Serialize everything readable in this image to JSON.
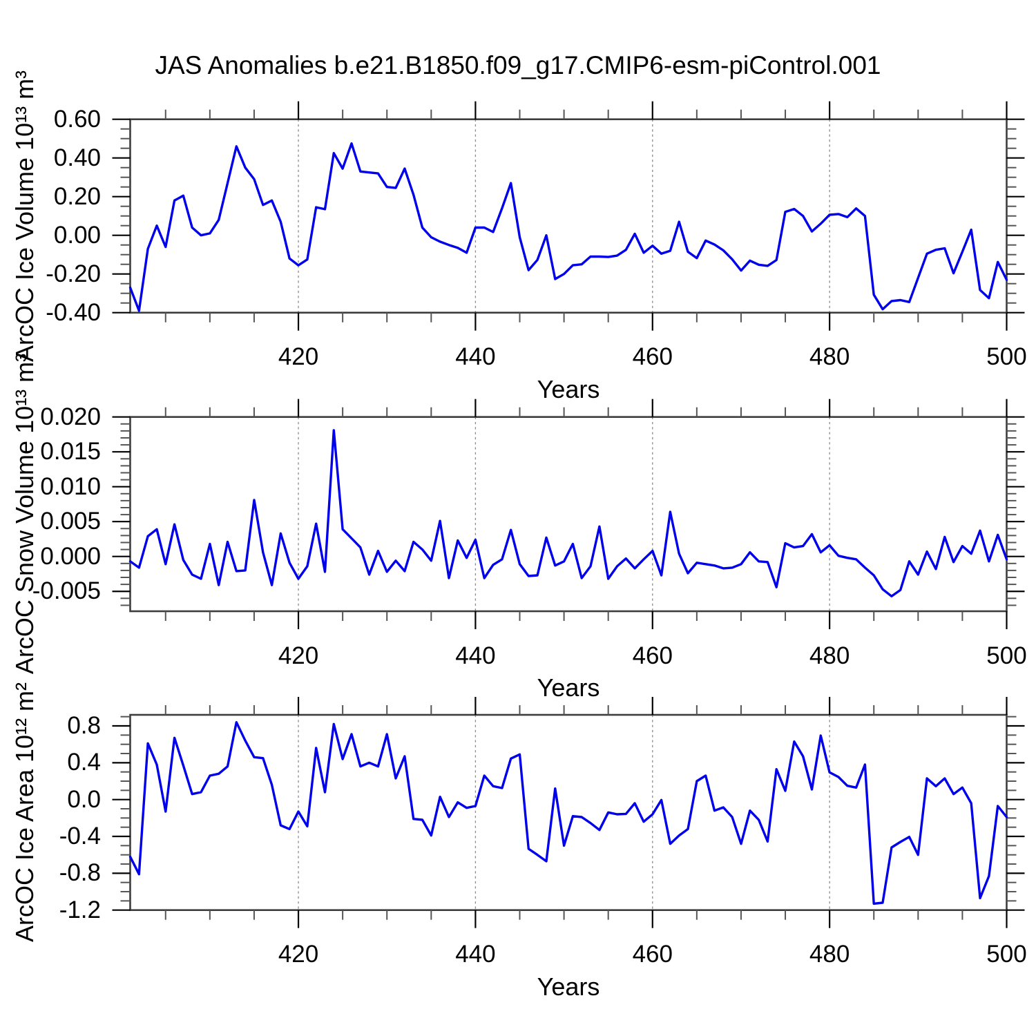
{
  "title": "JAS Anomalies b.e21.B1850.f09_g17.CMIP6-esm-piControl.001",
  "colors": {
    "line": "#0000EB",
    "frame": "#3d3d3d",
    "major_tick": "#000000",
    "minor_tick": "#555555",
    "gridline": "#8a8a8a",
    "text": "#000000",
    "background": "#ffffff"
  },
  "chart_data": [
    {
      "type": "line",
      "series_name": "ArcOC Ice Volume anomaly",
      "ylabel": "ArcOC Ice Volume 10¹³ m³",
      "xlabel": "Years",
      "x_start": 401,
      "xlim": [
        401,
        500
      ],
      "ylim": [
        -0.4,
        0.6
      ],
      "ytick_values": [
        0.6,
        0.4,
        0.2,
        0.0,
        -0.2,
        -0.4
      ],
      "ytick_labels": [
        "0.60",
        "0.40",
        "0.20",
        "0.00",
        "-0.20",
        "-0.40"
      ],
      "y_minor_step": 0.05,
      "xtick_values": [
        420,
        440,
        460,
        480,
        500
      ],
      "xtick_labels": [
        "420",
        "440",
        "460",
        "480",
        "500"
      ],
      "x_minor_step": 5,
      "gridline_x": [
        420,
        440,
        460,
        480
      ],
      "grid": "vertical-dashed",
      "legend": "none",
      "values": [
        -0.27,
        -0.39,
        -0.07,
        0.05,
        -0.06,
        0.18,
        0.205,
        0.04,
        0.0,
        0.01,
        0.08,
        0.27,
        0.46,
        0.35,
        0.29,
        0.157,
        0.18,
        0.07,
        -0.12,
        -0.155,
        -0.125,
        0.145,
        0.135,
        0.425,
        0.345,
        0.475,
        0.33,
        0.325,
        0.32,
        0.25,
        0.245,
        0.345,
        0.21,
        0.04,
        -0.01,
        -0.033,
        -0.05,
        -0.065,
        -0.09,
        0.04,
        0.04,
        0.017,
        0.14,
        0.27,
        -0.01,
        -0.18,
        -0.127,
        0.0,
        -0.226,
        -0.2,
        -0.155,
        -0.15,
        -0.11,
        -0.11,
        -0.112,
        -0.105,
        -0.075,
        0.008,
        -0.09,
        -0.054,
        -0.095,
        -0.08,
        0.07,
        -0.085,
        -0.118,
        -0.027,
        -0.048,
        -0.078,
        -0.124,
        -0.182,
        -0.131,
        -0.152,
        -0.158,
        -0.128,
        0.121,
        0.136,
        0.1,
        0.02,
        0.06,
        0.106,
        0.11,
        0.094,
        0.139,
        0.1,
        -0.307,
        -0.382,
        -0.34,
        -0.335,
        -0.345,
        -0.22,
        -0.095,
        -0.075,
        -0.067,
        -0.196,
        -0.085,
        0.029,
        -0.283,
        -0.325,
        -0.138,
        -0.23
      ]
    },
    {
      "type": "line",
      "series_name": "ArcOC Snow Volume anomaly",
      "ylabel": "ArcOC Snow Volume 10¹³ m³",
      "xlabel": "Years",
      "x_start": 401,
      "xlim": [
        401,
        500
      ],
      "ylim": [
        -0.00785,
        0.02
      ],
      "ytick_values": [
        0.02,
        0.015,
        0.01,
        0.005,
        0.0,
        -0.005
      ],
      "ytick_labels": [
        "0.020",
        "0.015",
        "0.010",
        "0.005",
        "0.000",
        "-0.005"
      ],
      "y_minor_step": 0.001,
      "xtick_values": [
        420,
        440,
        460,
        480,
        500
      ],
      "xtick_labels": [
        "420",
        "440",
        "460",
        "480",
        "500"
      ],
      "x_minor_step": 5,
      "gridline_x": [
        420,
        440,
        460,
        480
      ],
      "grid": "vertical-dashed",
      "legend": "none",
      "values": [
        -0.0007,
        -0.0016,
        0.0029,
        0.0039,
        -0.0011,
        0.0046,
        -0.0005,
        -0.0026,
        -0.0032,
        0.0018,
        -0.0041,
        0.0021,
        -0.0021,
        -0.002,
        0.0081,
        0.0006,
        -0.0041,
        0.0033,
        -0.0009,
        -0.0032,
        -0.0014,
        0.0047,
        -0.0022,
        0.0181,
        0.0039,
        0.0026,
        0.0013,
        -0.0026,
        0.0008,
        -0.0022,
        -0.0006,
        -0.0021,
        0.0021,
        0.001,
        -0.0006,
        0.0051,
        -0.0031,
        0.0023,
        -0.0002,
        0.0024,
        -0.0031,
        -0.0012,
        -0.0004,
        0.0038,
        -0.0011,
        -0.0028,
        -0.0027,
        0.0027,
        -0.0013,
        -0.0007,
        0.0018,
        -0.0031,
        -0.0014,
        0.0043,
        -0.0032,
        -0.0014,
        -0.0003,
        -0.0017,
        -0.0004,
        0.0008,
        -0.0027,
        0.0064,
        0.0004,
        -0.0024,
        -0.0009,
        -0.0011,
        -0.0013,
        -0.0017,
        -0.0016,
        -0.0011,
        0.0006,
        -0.0007,
        -0.0008,
        -0.0044,
        0.0019,
        0.0013,
        0.0015,
        0.0032,
        0.0006,
        0.0016,
        0.0001,
        -0.0002,
        -0.0004,
        -0.0016,
        -0.0027,
        -0.0047,
        -0.0057,
        -0.0048,
        -0.0007,
        -0.0026,
        0.0007,
        -0.0018,
        0.0028,
        -0.0008,
        0.0015,
        0.0004,
        0.0037,
        -0.0007,
        0.0031,
        -0.0004
      ]
    },
    {
      "type": "line",
      "series_name": "ArcOC Ice Area anomaly",
      "ylabel": "ArcOC Ice Area 10¹² m²",
      "xlabel": "Years",
      "x_start": 401,
      "xlim": [
        401,
        500
      ],
      "ylim": [
        -1.2,
        0.92
      ],
      "ytick_values": [
        0.8,
        0.4,
        0.0,
        -0.4,
        -0.8,
        -1.2
      ],
      "ytick_labels": [
        "0.8",
        "0.4",
        "0.0",
        "-0.4",
        "-0.8",
        "-1.2"
      ],
      "y_minor_step": 0.1,
      "xtick_values": [
        420,
        440,
        460,
        480,
        500
      ],
      "xtick_labels": [
        "420",
        "440",
        "460",
        "480",
        "500"
      ],
      "x_minor_step": 5,
      "gridline_x": [
        420,
        440,
        460,
        480
      ],
      "grid": "vertical-dashed",
      "legend": "none",
      "values": [
        -0.62,
        -0.81,
        0.61,
        0.38,
        -0.13,
        0.67,
        0.37,
        0.06,
        0.08,
        0.26,
        0.28,
        0.36,
        0.84,
        0.64,
        0.46,
        0.45,
        0.16,
        -0.28,
        -0.32,
        -0.13,
        -0.29,
        0.56,
        0.08,
        0.82,
        0.44,
        0.71,
        0.36,
        0.4,
        0.36,
        0.71,
        0.23,
        0.47,
        -0.21,
        -0.22,
        -0.39,
        0.03,
        -0.19,
        -0.03,
        -0.09,
        -0.07,
        0.26,
        0.145,
        0.125,
        0.445,
        0.49,
        -0.535,
        -0.6,
        -0.67,
        0.12,
        -0.5,
        -0.18,
        -0.19,
        -0.255,
        -0.33,
        -0.14,
        -0.16,
        -0.155,
        -0.04,
        -0.24,
        -0.16,
        -0.005,
        -0.48,
        -0.39,
        -0.32,
        0.2,
        0.26,
        -0.12,
        -0.085,
        -0.19,
        -0.48,
        -0.12,
        -0.22,
        -0.455,
        0.33,
        0.095,
        0.63,
        0.47,
        0.11,
        0.695,
        0.295,
        0.245,
        0.15,
        0.13,
        0.38,
        -1.13,
        -1.12,
        -0.52,
        -0.46,
        -0.405,
        -0.6,
        0.23,
        0.145,
        0.23,
        0.06,
        0.13,
        -0.04,
        -1.07,
        -0.83,
        -0.07,
        -0.19
      ]
    }
  ]
}
